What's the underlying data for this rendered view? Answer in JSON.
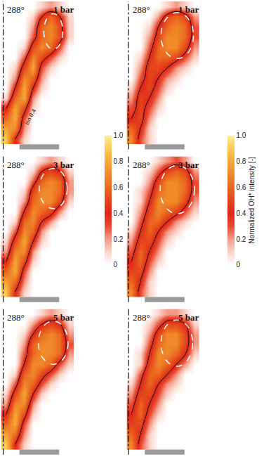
{
  "chart_data": {
    "type": "heatmap",
    "iso": 0.4,
    "xlim": [
      -0.5,
      9.5
    ],
    "ylim": [
      -1,
      13.5
    ],
    "tick_labels": false,
    "colorbars": [
      {
        "range": [
          0,
          1
        ],
        "ticks": [
          0,
          0.2,
          0.4,
          0.6,
          0.8,
          {
            "value": 1,
            "label": "1.0"
          }
        ]
      },
      {
        "range": [
          0,
          1
        ],
        "ticks": [
          0,
          0.2,
          0.4,
          0.6,
          0.8,
          {
            "value": 1,
            "label": "1.0"
          }
        ],
        "title": "Normalized OH* intensity [-]"
      }
    ],
    "panels": [
      {
        "angle": "288°",
        "label": "1 bar",
        "annotation": "iso 0.4",
        "z": [
          [
            0.9,
            0.4,
            0.1,
            0,
            0,
            0,
            0,
            0
          ],
          [
            0.8,
            0.7,
            0.2,
            0,
            0,
            0,
            0,
            0
          ],
          [
            0.6,
            0.8,
            0.3,
            0,
            0,
            0,
            0,
            0
          ],
          [
            0.4,
            0.8,
            0.5,
            0.1,
            0,
            0,
            0,
            0
          ],
          [
            0.1,
            0.6,
            0.8,
            0.2,
            0,
            0,
            0,
            0
          ],
          [
            0,
            0.4,
            0.8,
            0.4,
            0.1,
            0,
            0,
            0
          ],
          [
            0,
            0.2,
            0.7,
            0.6,
            0.2,
            0,
            0,
            0
          ],
          [
            0,
            0.1,
            0.5,
            0.8,
            0.3,
            0.1,
            0,
            0
          ],
          [
            0,
            0,
            0.3,
            0.7,
            0.5,
            0.3,
            0.1,
            0
          ],
          [
            0,
            0,
            0.1,
            0.5,
            0.7,
            0.6,
            0.3,
            0
          ],
          [
            0,
            0,
            0,
            0.3,
            0.6,
            0.7,
            0.5,
            0.1
          ],
          [
            0,
            0,
            0,
            0.2,
            0.6,
            0.7,
            0.5,
            0.1
          ],
          [
            0,
            0,
            0,
            0.1,
            0.4,
            0.6,
            0.4,
            0.1
          ],
          [
            0,
            0,
            0,
            0,
            0.1,
            0.2,
            0.1,
            0
          ]
        ]
      },
      {
        "angle": "288°",
        "label": "1 bar",
        "z": [
          [
            0.7,
            0.3,
            0.1,
            0,
            0,
            0,
            0,
            0
          ],
          [
            0.6,
            0.4,
            0.1,
            0,
            0,
            0,
            0,
            0
          ],
          [
            0.4,
            0.5,
            0.2,
            0,
            0,
            0,
            0,
            0
          ],
          [
            0.3,
            0.5,
            0.3,
            0.1,
            0,
            0,
            0,
            0
          ],
          [
            0.2,
            0.5,
            0.4,
            0.2,
            0,
            0,
            0,
            0
          ],
          [
            0.1,
            0.4,
            0.5,
            0.3,
            0.1,
            0,
            0,
            0
          ],
          [
            0,
            0.3,
            0.5,
            0.4,
            0.2,
            0.1,
            0,
            0
          ],
          [
            0,
            0.2,
            0.5,
            0.5,
            0.4,
            0.2,
            0.1,
            0
          ],
          [
            0,
            0.1,
            0.4,
            0.6,
            0.6,
            0.5,
            0.3,
            0.1
          ],
          [
            0,
            0,
            0.3,
            0.6,
            0.7,
            0.7,
            0.5,
            0.2
          ],
          [
            0,
            0,
            0.2,
            0.5,
            0.7,
            0.7,
            0.6,
            0.3
          ],
          [
            0,
            0,
            0.1,
            0.4,
            0.6,
            0.7,
            0.6,
            0.3
          ],
          [
            0,
            0,
            0,
            0.2,
            0.5,
            0.6,
            0.5,
            0.2
          ],
          [
            0,
            0,
            0,
            0,
            0.1,
            0.2,
            0.1,
            0
          ]
        ]
      },
      {
        "angle": "288°",
        "label": "3 bar",
        "z": [
          [
            0.9,
            0.4,
            0.1,
            0,
            0,
            0,
            0,
            0
          ],
          [
            0.8,
            0.6,
            0.2,
            0,
            0,
            0,
            0,
            0
          ],
          [
            0.6,
            0.8,
            0.3,
            0,
            0,
            0,
            0,
            0
          ],
          [
            0.4,
            0.8,
            0.5,
            0.1,
            0,
            0,
            0,
            0
          ],
          [
            0.2,
            0.7,
            0.7,
            0.2,
            0,
            0,
            0,
            0
          ],
          [
            0.1,
            0.5,
            0.8,
            0.4,
            0.1,
            0,
            0,
            0
          ],
          [
            0,
            0.3,
            0.7,
            0.6,
            0.2,
            0,
            0,
            0
          ],
          [
            0,
            0.1,
            0.6,
            0.7,
            0.4,
            0.2,
            0,
            0
          ],
          [
            0,
            0,
            0.4,
            0.7,
            0.6,
            0.5,
            0.2,
            0
          ],
          [
            0,
            0,
            0.2,
            0.6,
            0.7,
            0.7,
            0.5,
            0.1
          ],
          [
            0,
            0,
            0.1,
            0.5,
            0.7,
            0.7,
            0.6,
            0.2
          ],
          [
            0,
            0,
            0,
            0.3,
            0.6,
            0.7,
            0.6,
            0.2
          ],
          [
            0,
            0,
            0,
            0.1,
            0.4,
            0.5,
            0.4,
            0.1
          ],
          [
            0,
            0,
            0,
            0,
            0.1,
            0.2,
            0.1,
            0
          ]
        ]
      },
      {
        "angle": "288°",
        "label": "3 bar",
        "z": [
          [
            0.7,
            0.3,
            0.1,
            0,
            0,
            0,
            0,
            0
          ],
          [
            0.6,
            0.4,
            0.1,
            0,
            0,
            0,
            0,
            0
          ],
          [
            0.5,
            0.5,
            0.2,
            0,
            0,
            0,
            0,
            0
          ],
          [
            0.4,
            0.6,
            0.3,
            0.1,
            0,
            0,
            0,
            0
          ],
          [
            0.3,
            0.6,
            0.4,
            0.2,
            0,
            0,
            0,
            0
          ],
          [
            0.2,
            0.5,
            0.5,
            0.3,
            0.1,
            0,
            0,
            0
          ],
          [
            0.1,
            0.4,
            0.6,
            0.4,
            0.2,
            0.1,
            0,
            0
          ],
          [
            0,
            0.3,
            0.6,
            0.6,
            0.4,
            0.2,
            0.1,
            0
          ],
          [
            0,
            0.2,
            0.5,
            0.7,
            0.6,
            0.5,
            0.3,
            0.1
          ],
          [
            0,
            0.1,
            0.4,
            0.7,
            0.7,
            0.7,
            0.5,
            0.2
          ],
          [
            0,
            0.1,
            0.3,
            0.6,
            0.7,
            0.7,
            0.6,
            0.3
          ],
          [
            0,
            0,
            0.2,
            0.5,
            0.7,
            0.7,
            0.6,
            0.3
          ],
          [
            0,
            0,
            0.1,
            0.3,
            0.5,
            0.6,
            0.5,
            0.2
          ],
          [
            0,
            0,
            0,
            0.1,
            0.2,
            0.3,
            0.2,
            0
          ]
        ]
      },
      {
        "angle": "288°",
        "label": "5 bar",
        "z": [
          [
            0.9,
            0.4,
            0.1,
            0,
            0,
            0,
            0,
            0
          ],
          [
            0.8,
            0.6,
            0.2,
            0,
            0,
            0,
            0,
            0
          ],
          [
            0.6,
            0.8,
            0.3,
            0,
            0,
            0,
            0,
            0
          ],
          [
            0.4,
            0.8,
            0.5,
            0.1,
            0,
            0,
            0,
            0
          ],
          [
            0.2,
            0.7,
            0.7,
            0.2,
            0,
            0,
            0,
            0
          ],
          [
            0.1,
            0.5,
            0.8,
            0.4,
            0.1,
            0,
            0,
            0
          ],
          [
            0,
            0.3,
            0.7,
            0.6,
            0.3,
            0.1,
            0,
            0
          ],
          [
            0,
            0.1,
            0.6,
            0.7,
            0.5,
            0.3,
            0.1,
            0
          ],
          [
            0,
            0,
            0.4,
            0.7,
            0.7,
            0.6,
            0.3,
            0.1
          ],
          [
            0,
            0,
            0.3,
            0.6,
            0.7,
            0.7,
            0.6,
            0.2
          ],
          [
            0,
            0,
            0.2,
            0.6,
            0.7,
            0.7,
            0.6,
            0.3
          ],
          [
            0,
            0,
            0.1,
            0.4,
            0.6,
            0.7,
            0.6,
            0.2
          ],
          [
            0,
            0,
            0,
            0.2,
            0.4,
            0.5,
            0.4,
            0.1
          ],
          [
            0,
            0,
            0,
            0,
            0.1,
            0.2,
            0.1,
            0
          ]
        ]
      },
      {
        "angle": "288°",
        "label": "5 bar",
        "z": [
          [
            0.7,
            0.3,
            0.1,
            0,
            0,
            0,
            0,
            0
          ],
          [
            0.6,
            0.4,
            0.1,
            0,
            0,
            0,
            0,
            0
          ],
          [
            0.5,
            0.5,
            0.2,
            0,
            0,
            0,
            0,
            0
          ],
          [
            0.4,
            0.6,
            0.3,
            0.1,
            0,
            0,
            0,
            0
          ],
          [
            0.3,
            0.6,
            0.4,
            0.2,
            0,
            0,
            0,
            0
          ],
          [
            0.2,
            0.5,
            0.5,
            0.3,
            0.1,
            0,
            0,
            0
          ],
          [
            0.1,
            0.4,
            0.6,
            0.4,
            0.2,
            0.1,
            0,
            0
          ],
          [
            0,
            0.3,
            0.6,
            0.6,
            0.4,
            0.2,
            0,
            0
          ],
          [
            0,
            0.1,
            0.5,
            0.7,
            0.6,
            0.4,
            0.2,
            0
          ],
          [
            0,
            0.1,
            0.4,
            0.7,
            0.7,
            0.6,
            0.4,
            0.1
          ],
          [
            0,
            0,
            0.3,
            0.6,
            0.7,
            0.7,
            0.5,
            0.2
          ],
          [
            0,
            0,
            0.2,
            0.5,
            0.7,
            0.7,
            0.5,
            0.2
          ],
          [
            0,
            0,
            0.1,
            0.3,
            0.5,
            0.5,
            0.4,
            0.1
          ],
          [
            0,
            0,
            0,
            0.1,
            0.2,
            0.2,
            0.1,
            0
          ]
        ]
      }
    ]
  }
}
